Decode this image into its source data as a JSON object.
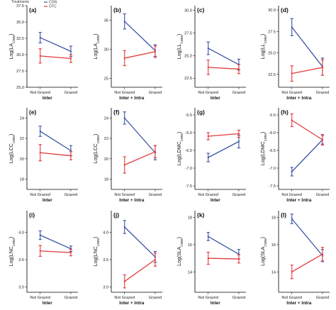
{
  "legend": {
    "title": "Treatments",
    "items": [
      {
        "name": "CON",
        "color": "#3b55a6"
      },
      {
        "name": "OTC",
        "color": "#e23b3b"
      }
    ]
  },
  "chart_data": [
    {
      "type": "line",
      "label": "(a)",
      "ylabel": "Log(LA",
      "ylabel_sub": "CWM",
      "xlabel": "Inter",
      "categories": [
        "Not Grazed",
        "Grazed"
      ],
      "ylim": [
        25.0,
        37.5
      ],
      "yticks": [
        25.0,
        27.5,
        30.0,
        32.5,
        35.0,
        37.5
      ],
      "ytick_labels": [
        "25.0",
        "27.5",
        "30.0",
        "32.5",
        "35.0",
        "37.5"
      ],
      "series": [
        {
          "name": "CON",
          "color": "#3b55a6",
          "values": [
            32.6,
            30.5
          ],
          "err": [
            0.8,
            0.8
          ]
        },
        {
          "name": "OTC",
          "color": "#e23b3b",
          "values": [
            29.8,
            29.4
          ],
          "err": [
            1.1,
            0.6
          ]
        }
      ]
    },
    {
      "type": "line",
      "label": "(b)",
      "ylabel": "Log(LA",
      "ylabel_sub": "CWM",
      "xlabel": "Inter + Intra",
      "categories": [
        "Not Grazed",
        "Grazed"
      ],
      "ylim": [
        23.5,
        37.5
      ],
      "yticks": [
        25,
        30,
        35
      ],
      "ytick_labels": [
        "25",
        "30",
        "35"
      ],
      "series": [
        {
          "name": "CON",
          "color": "#3b55a6",
          "values": [
            34.8,
            29.8
          ],
          "err": [
            1.3,
            1.0
          ]
        },
        {
          "name": "OTC",
          "color": "#e23b3b",
          "values": [
            28.5,
            29.6
          ],
          "err": [
            1.3,
            1.0
          ]
        }
      ]
    },
    {
      "type": "line",
      "label": "(c)",
      "ylabel": "Log(LL",
      "ylabel_sub": "CWM",
      "xlabel": "Inter",
      "categories": [
        "Not Grazed",
        "Grazed"
      ],
      "ylim": [
        21.5,
        30.5
      ],
      "yticks": [
        22.5,
        25.0,
        27.5,
        30.0
      ],
      "ytick_labels": [
        "22.5",
        "25.0",
        "27.5",
        "30.0"
      ],
      "series": [
        {
          "name": "CON",
          "color": "#3b55a6",
          "values": [
            25.8,
            24.0
          ],
          "err": [
            0.7,
            0.6
          ]
        },
        {
          "name": "OTC",
          "color": "#e23b3b",
          "values": [
            23.7,
            23.5
          ],
          "err": [
            0.8,
            0.5
          ]
        }
      ]
    },
    {
      "type": "line",
      "label": "(d)",
      "ylabel": "Log(LL",
      "ylabel_sub": "CWM",
      "xlabel": "Inter + Intra",
      "categories": [
        "Not Grazed",
        "Grazed"
      ],
      "ylim": [
        21.0,
        30.5
      ],
      "yticks": [
        22.5,
        25.0,
        27.5,
        30.0
      ],
      "ytick_labels": [
        "22.5",
        "25.0",
        "27.5",
        "30.0"
      ],
      "series": [
        {
          "name": "CON",
          "color": "#3b55a6",
          "values": [
            28.0,
            23.4
          ],
          "err": [
            1.0,
            1.0
          ]
        },
        {
          "name": "OTC",
          "color": "#e23b3b",
          "values": [
            22.6,
            23.3
          ],
          "err": [
            0.9,
            0.9
          ]
        }
      ]
    },
    {
      "type": "line",
      "label": "(e)",
      "ylabel": "Log(LCC",
      "ylabel_sub": "CWM",
      "xlabel": "Inter",
      "categories": [
        "Not Grazed",
        "Grazed"
      ],
      "ylim": [
        17.0,
        25.0
      ],
      "yticks": [
        18,
        20,
        22,
        24
      ],
      "ytick_labels": [
        "18",
        "20",
        "22",
        "24"
      ],
      "series": [
        {
          "name": "CON",
          "color": "#3b55a6",
          "values": [
            22.7,
            20.8
          ],
          "err": [
            0.5,
            0.5
          ]
        },
        {
          "name": "OTC",
          "color": "#e23b3b",
          "values": [
            20.6,
            20.3
          ],
          "err": [
            0.8,
            0.4
          ]
        }
      ]
    },
    {
      "type": "line",
      "label": "(f)",
      "ylabel": "Log(LCC",
      "ylabel_sub": "CWM",
      "xlabel": "Inter + Intra",
      "categories": [
        "Not Grazed",
        "Grazed"
      ],
      "ylim": [
        17.0,
        25.0
      ],
      "yticks": [
        18,
        20,
        22,
        24
      ],
      "ytick_labels": [
        "18",
        "20",
        "22",
        "24"
      ],
      "series": [
        {
          "name": "CON",
          "color": "#3b55a6",
          "values": [
            24.0,
            20.6
          ],
          "err": [
            0.6,
            0.7
          ]
        },
        {
          "name": "OTC",
          "color": "#e23b3b",
          "values": [
            19.4,
            20.7
          ],
          "err": [
            0.8,
            0.6
          ]
        }
      ]
    },
    {
      "type": "line",
      "label": "(g)",
      "ylabel": "Log(LDMC",
      "ylabel_sub": "CWM",
      "xlabel": "Inter",
      "categories": [
        "Not Grazed",
        "Grazed"
      ],
      "ylim": [
        -7.6,
        -5.3
      ],
      "yticks": [
        -7.5,
        -7.0,
        -6.5,
        -6.0,
        -5.5
      ],
      "ytick_labels": [
        "-7.5",
        "-7.0",
        "-6.5",
        "-6.0",
        "-5.5"
      ],
      "series": [
        {
          "name": "CON",
          "color": "#3b55a6",
          "values": [
            -6.7,
            -6.25
          ],
          "err": [
            0.12,
            0.18
          ]
        },
        {
          "name": "OTC",
          "color": "#e23b3b",
          "values": [
            -6.1,
            -6.03
          ],
          "err": [
            0.1,
            0.1
          ]
        }
      ]
    },
    {
      "type": "line",
      "label": "(h)",
      "ylabel": "Log(LDMC",
      "ylabel_sub": "CWM",
      "xlabel": "Inter + Intra",
      "categories": [
        "Not Grazed",
        "Grazed"
      ],
      "ylim": [
        -7.6,
        -5.3
      ],
      "yticks": [
        -7.5,
        -7.0,
        -6.5,
        -6.0,
        -5.5
      ],
      "ytick_labels": [
        "-7.5",
        "-7.0",
        "-6.5",
        "-6.0",
        "-5.5"
      ],
      "series": [
        {
          "name": "CON",
          "color": "#3b55a6",
          "values": [
            -7.1,
            -6.2
          ],
          "err": [
            0.12,
            0.12
          ]
        },
        {
          "name": "OTC",
          "color": "#e23b3b",
          "values": [
            -5.65,
            -6.2
          ],
          "err": [
            0.18,
            0.15
          ]
        }
      ]
    },
    {
      "type": "line",
      "label": "(i)",
      "ylabel": "Log(LNC",
      "ylabel_sub": "CWM",
      "xlabel": "Inter",
      "categories": [
        "Not Grazed",
        "Grazed"
      ],
      "ylim": [
        2.9,
        4.4
      ],
      "yticks": [
        3.0,
        3.5,
        4.0
      ],
      "ytick_labels": [
        "3.0",
        "3.5",
        "4.0"
      ],
      "series": [
        {
          "name": "CON",
          "color": "#3b55a6",
          "values": [
            3.95,
            3.7
          ],
          "err": [
            0.08,
            0.05
          ]
        },
        {
          "name": "OTC",
          "color": "#e23b3b",
          "values": [
            3.66,
            3.63
          ],
          "err": [
            0.1,
            0.06
          ]
        }
      ]
    },
    {
      "type": "line",
      "label": "(j)",
      "ylabel": "Log(LNC",
      "ylabel_sub": "CWM",
      "xlabel": "Inter + Intra",
      "categories": [
        "Not Grazed",
        "Grazed"
      ],
      "ylim": [
        2.9,
        4.4
      ],
      "yticks": [
        3.0,
        3.5,
        4.0
      ],
      "ytick_labels": [
        "3.0",
        "3.5",
        "4.0"
      ],
      "series": [
        {
          "name": "CON",
          "color": "#3b55a6",
          "values": [
            4.1,
            3.55
          ],
          "err": [
            0.12,
            0.1
          ]
        },
        {
          "name": "OTC",
          "color": "#e23b3b",
          "values": [
            3.1,
            3.5
          ],
          "err": [
            0.12,
            0.12
          ]
        }
      ]
    },
    {
      "type": "line",
      "label": "(k)",
      "ylabel": "Log(SLA",
      "ylabel_sub": "CWM",
      "xlabel": "Inter",
      "categories": [
        "Not Grazed",
        "Grazed"
      ],
      "ylim": [
        12.5,
        18.5
      ],
      "yticks": [
        14,
        16,
        18
      ],
      "ytick_labels": [
        "14",
        "16",
        "18"
      ],
      "series": [
        {
          "name": "CON",
          "color": "#3b55a6",
          "values": [
            16.6,
            15.3
          ],
          "err": [
            0.3,
            0.35
          ]
        },
        {
          "name": "OTC",
          "color": "#e23b3b",
          "values": [
            15.0,
            14.95
          ],
          "err": [
            0.45,
            0.3
          ]
        }
      ]
    },
    {
      "type": "line",
      "label": "(l)",
      "ylabel": "Log(SLA",
      "ylabel_sub": "CWM",
      "xlabel": "Inter + Intra",
      "categories": [
        "Not Grazed",
        "Grazed"
      ],
      "ylim": [
        12.5,
        18.5
      ],
      "yticks": [
        14,
        16,
        18
      ],
      "ytick_labels": [
        "14",
        "16",
        "18"
      ],
      "series": [
        {
          "name": "CON",
          "color": "#3b55a6",
          "values": [
            17.9,
            15.2
          ],
          "err": [
            0.35,
            0.45
          ]
        },
        {
          "name": "OTC",
          "color": "#e23b3b",
          "values": [
            14.0,
            15.3
          ],
          "err": [
            0.5,
            0.5
          ]
        }
      ]
    }
  ]
}
